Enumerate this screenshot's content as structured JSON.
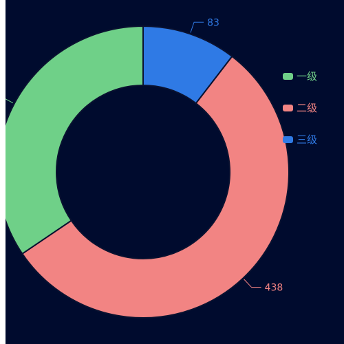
{
  "chart_data": {
    "type": "pie",
    "donut": true,
    "title": "",
    "start_angle_deg": 90,
    "clockwise": true,
    "legend_position": "right",
    "slices": [
      {
        "name": "三级",
        "value": 83,
        "color": "#2f7ae5",
        "label": "83",
        "show_label": true
      },
      {
        "name": "二级",
        "value": 438,
        "color": "#f28483",
        "label": "438",
        "show_label": true
      },
      {
        "name": "一级",
        "value": 274,
        "color": "#6fd088",
        "label": "",
        "show_label": false
      }
    ],
    "legend": [
      {
        "name": "一级",
        "color": "#6fd088"
      },
      {
        "name": "二级",
        "color": "#f28483"
      },
      {
        "name": "三级",
        "color": "#2f7ae5"
      }
    ]
  },
  "colors": {
    "background": "#000b2e",
    "slice_border": "#0a1230"
  }
}
